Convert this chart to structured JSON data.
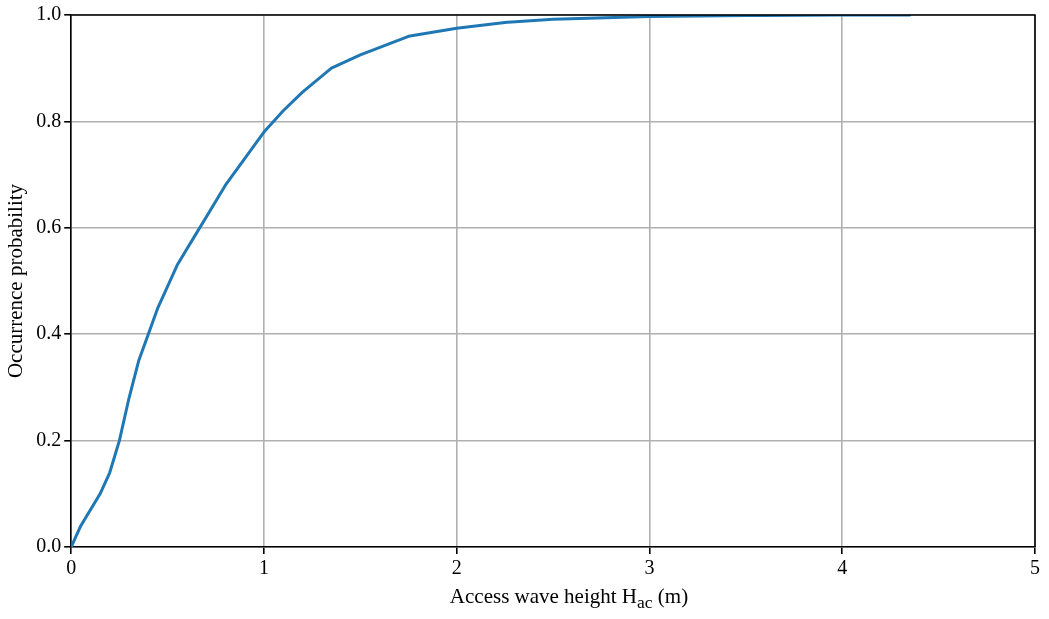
{
  "chart_data": {
    "type": "line",
    "xlabel": "Access wave height H$_{ac}$ (m)",
    "ylabel": "Occurrence probability",
    "series": [
      {
        "color": "#1f77b4",
        "x": [
          0,
          0.05,
          0.1,
          0.15,
          0.2,
          0.25,
          0.3,
          0.35,
          0.4,
          0.45,
          0.5,
          0.55,
          0.6,
          0.65,
          0.7,
          0.8,
          0.9,
          1.0,
          1.1,
          1.2,
          1.35,
          1.5,
          1.75,
          2.0,
          2.25,
          2.5,
          3.0,
          3.5,
          4.0,
          4.35
        ],
        "values": [
          0,
          0.04,
          0.07,
          0.1,
          0.14,
          0.2,
          0.28,
          0.35,
          0.4,
          0.45,
          0.49,
          0.53,
          0.56,
          0.59,
          0.62,
          0.68,
          0.73,
          0.78,
          0.82,
          0.855,
          0.9,
          0.925,
          0.96,
          0.975,
          0.986,
          0.992,
          0.997,
          0.999,
          1.0,
          1.0
        ]
      }
    ],
    "xlim": [
      0,
      5
    ],
    "xticks": [
      0,
      1,
      2,
      3,
      4,
      5
    ],
    "ylim": [
      0,
      1
    ],
    "yticks": [
      {
        "value": 0,
        "label": "0.0"
      },
      {
        "value": 0.2,
        "label": "0.2"
      },
      {
        "value": 0.4,
        "label": "0.4"
      },
      {
        "value": 0.6,
        "label": "0.6"
      },
      {
        "value": 0.8,
        "label": "0.8"
      },
      {
        "value": 1,
        "label": "1.0"
      }
    ],
    "grid": true,
    "marker": "none",
    "line_style": "solid"
  }
}
